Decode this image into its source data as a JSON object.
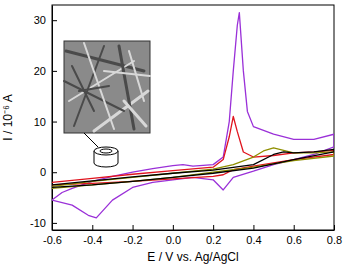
{
  "chart_data": {
    "type": "line",
    "xlabel": "E / V vs. Ag/AgCl",
    "ylabel": "I / 10⁻⁶ A",
    "xlim": [
      -0.6,
      0.8
    ],
    "ylim": [
      -11.4,
      33
    ],
    "xticks": [
      -0.6,
      -0.4,
      -0.2,
      {
        "value": 0,
        "label": "0.0"
      },
      0.2,
      0.4,
      0.6,
      0.8
    ],
    "yticks": [
      -10,
      0,
      10,
      20,
      30
    ],
    "series": [
      {
        "color": "#9a30d8",
        "x": [
          -0.6,
          -0.55,
          -0.5,
          -0.4,
          -0.3,
          -0.2,
          -0.1,
          0.0,
          0.05,
          0.1,
          0.2,
          0.25,
          0.28,
          0.3,
          0.32,
          0.33,
          0.35,
          0.37,
          0.4,
          0.5,
          0.6,
          0.7,
          0.8,
          0.8,
          0.7,
          0.6,
          0.5,
          0.4,
          0.3,
          0.25,
          0.2,
          0.1,
          0.0,
          -0.1,
          -0.2,
          -0.3,
          -0.38,
          -0.42,
          -0.5,
          -0.6
        ],
        "values": [
          -5.5,
          -4,
          -3.2,
          -1.8,
          -0.8,
          0,
          0.7,
          1.3,
          1.5,
          1.2,
          1.5,
          3,
          10,
          20,
          29,
          31.5,
          20,
          12,
          9,
          7.5,
          6.5,
          6.5,
          7.5,
          5,
          3.5,
          2.5,
          1.5,
          0.2,
          -1,
          -3.5,
          -1.5,
          -1,
          -1.5,
          -2,
          -3,
          -5.5,
          -9,
          -8.5,
          -6.5,
          -5.5
        ]
      },
      {
        "color": "#e0141e",
        "x": [
          -0.6,
          -0.4,
          -0.2,
          0.0,
          0.2,
          0.25,
          0.28,
          0.3,
          0.32,
          0.35,
          0.4,
          0.5,
          0.6,
          0.7,
          0.8,
          0.8,
          0.6,
          0.4,
          0.3,
          0.25,
          0.2,
          0.0,
          -0.2,
          -0.4,
          -0.6
        ],
        "values": [
          -2,
          -1.2,
          -0.4,
          0.3,
          1,
          2.5,
          7,
          11,
          8,
          4,
          3,
          3.3,
          3.8,
          4,
          4.3,
          3.5,
          2.5,
          1.2,
          0.5,
          -0.5,
          -0.8,
          -1.3,
          -1.8,
          -2.2,
          -2.5
        ]
      },
      {
        "color": "#8f8f00",
        "x": [
          -0.6,
          -0.4,
          -0.2,
          0.0,
          0.2,
          0.3,
          0.4,
          0.45,
          0.5,
          0.55,
          0.6,
          0.7,
          0.8,
          0.8,
          0.6,
          0.4,
          0.2,
          0.0,
          -0.2,
          -0.4,
          -0.6
        ],
        "values": [
          -2.8,
          -1.8,
          -1,
          -0.2,
          0.6,
          1.5,
          3,
          4.2,
          4.8,
          4.3,
          3.8,
          3.8,
          4,
          3.2,
          2.3,
          1,
          0,
          -1,
          -1.8,
          -2.5,
          -3.2
        ]
      },
      {
        "color": "#000000",
        "x": [
          -0.6,
          -0.4,
          -0.2,
          0.0,
          0.2,
          0.4,
          0.5,
          0.55,
          0.6,
          0.7,
          0.8,
          0.8,
          0.6,
          0.4,
          0.2,
          0.0,
          -0.2,
          -0.4,
          -0.6
        ],
        "values": [
          -2.5,
          -1.7,
          -0.9,
          -0.2,
          0.4,
          1.5,
          3.5,
          4,
          3.8,
          4,
          4.5,
          4,
          2.5,
          0.8,
          -0.2,
          -1,
          -1.8,
          -2.5,
          -3
        ]
      }
    ]
  }
}
